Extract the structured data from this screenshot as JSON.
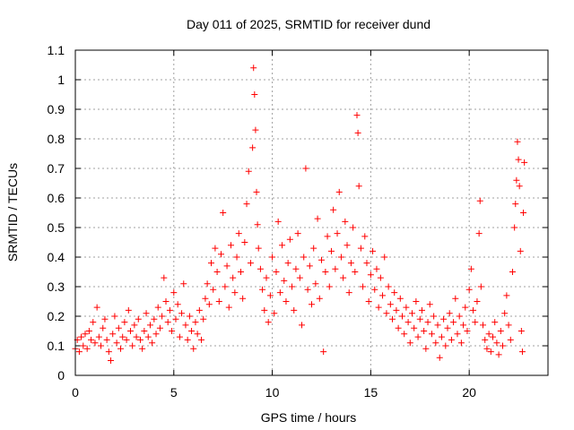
{
  "chart_data": {
    "type": "scatter",
    "title": "Day 011 of 2025, SRMTID for receiver dund",
    "xlabel": "GPS time / hours",
    "ylabel": "SRMTID / TECUs",
    "xlim": [
      0,
      24
    ],
    "ylim": [
      0,
      1.1
    ],
    "x_ticks": [
      0,
      5,
      10,
      15,
      20
    ],
    "x_tick_labels": [
      "0",
      "5",
      "10",
      "15",
      "20"
    ],
    "y_ticks": [
      0,
      0.1,
      0.2,
      0.3,
      0.4,
      0.5,
      0.6,
      0.7,
      0.8,
      0.9,
      1.0,
      1.1
    ],
    "y_tick_labels": [
      "0",
      "0.1",
      "0.2",
      "0.3",
      "0.4",
      "0.5",
      "0.6",
      "0.7",
      "0.8",
      "0.9",
      "1",
      "1.1"
    ],
    "grid": true,
    "marker": "+",
    "series": [
      {
        "name": "SRMTID",
        "color": "#ff0000",
        "points": [
          [
            0.0,
            0.09
          ],
          [
            0.1,
            0.12
          ],
          [
            0.2,
            0.08
          ],
          [
            0.3,
            0.13
          ],
          [
            0.4,
            0.1
          ],
          [
            0.5,
            0.14
          ],
          [
            0.6,
            0.09
          ],
          [
            0.7,
            0.15
          ],
          [
            0.8,
            0.12
          ],
          [
            0.9,
            0.18
          ],
          [
            1.0,
            0.11
          ],
          [
            1.1,
            0.23
          ],
          [
            1.2,
            0.13
          ],
          [
            1.3,
            0.1
          ],
          [
            1.4,
            0.16
          ],
          [
            1.5,
            0.19
          ],
          [
            1.6,
            0.12
          ],
          [
            1.7,
            0.08
          ],
          [
            1.8,
            0.05
          ],
          [
            1.9,
            0.14
          ],
          [
            2.0,
            0.2
          ],
          [
            2.1,
            0.11
          ],
          [
            2.2,
            0.16
          ],
          [
            2.3,
            0.09
          ],
          [
            2.4,
            0.13
          ],
          [
            2.5,
            0.18
          ],
          [
            2.6,
            0.12
          ],
          [
            2.7,
            0.22
          ],
          [
            2.8,
            0.15
          ],
          [
            2.9,
            0.1
          ],
          [
            3.0,
            0.17
          ],
          [
            3.1,
            0.13
          ],
          [
            3.2,
            0.19
          ],
          [
            3.3,
            0.12
          ],
          [
            3.4,
            0.09
          ],
          [
            3.5,
            0.15
          ],
          [
            3.6,
            0.21
          ],
          [
            3.7,
            0.13
          ],
          [
            3.8,
            0.17
          ],
          [
            3.9,
            0.11
          ],
          [
            4.0,
            0.19
          ],
          [
            4.1,
            0.14
          ],
          [
            4.2,
            0.23
          ],
          [
            4.3,
            0.16
          ],
          [
            4.4,
            0.2
          ],
          [
            4.5,
            0.33
          ],
          [
            4.6,
            0.25
          ],
          [
            4.7,
            0.18
          ],
          [
            4.8,
            0.22
          ],
          [
            4.9,
            0.15
          ],
          [
            5.0,
            0.28
          ],
          [
            5.1,
            0.19
          ],
          [
            5.2,
            0.24
          ],
          [
            5.3,
            0.13
          ],
          [
            5.4,
            0.21
          ],
          [
            5.5,
            0.31
          ],
          [
            5.6,
            0.17
          ],
          [
            5.7,
            0.12
          ],
          [
            5.8,
            0.2
          ],
          [
            5.9,
            0.15
          ],
          [
            6.0,
            0.09
          ],
          [
            6.1,
            0.18
          ],
          [
            6.2,
            0.14
          ],
          [
            6.3,
            0.22
          ],
          [
            6.4,
            0.12
          ],
          [
            6.5,
            0.19
          ],
          [
            6.6,
            0.26
          ],
          [
            6.7,
            0.31
          ],
          [
            6.8,
            0.24
          ],
          [
            6.9,
            0.38
          ],
          [
            7.0,
            0.29
          ],
          [
            7.1,
            0.43
          ],
          [
            7.2,
            0.35
          ],
          [
            7.3,
            0.25
          ],
          [
            7.4,
            0.41
          ],
          [
            7.5,
            0.55
          ],
          [
            7.6,
            0.3
          ],
          [
            7.7,
            0.37
          ],
          [
            7.8,
            0.23
          ],
          [
            7.9,
            0.44
          ],
          [
            8.0,
            0.33
          ],
          [
            8.1,
            0.28
          ],
          [
            8.2,
            0.4
          ],
          [
            8.3,
            0.48
          ],
          [
            8.4,
            0.35
          ],
          [
            8.5,
            0.26
          ],
          [
            8.6,
            0.45
          ],
          [
            8.7,
            0.58
          ],
          [
            8.8,
            0.69
          ],
          [
            8.9,
            0.38
          ],
          [
            9.0,
            0.77
          ],
          [
            9.05,
            1.04
          ],
          [
            9.1,
            0.95
          ],
          [
            9.15,
            0.83
          ],
          [
            9.2,
            0.62
          ],
          [
            9.25,
            0.51
          ],
          [
            9.3,
            0.43
          ],
          [
            9.4,
            0.36
          ],
          [
            9.5,
            0.29
          ],
          [
            9.6,
            0.22
          ],
          [
            9.7,
            0.33
          ],
          [
            9.8,
            0.18
          ],
          [
            9.9,
            0.27
          ],
          [
            10.0,
            0.4
          ],
          [
            10.1,
            0.21
          ],
          [
            10.2,
            0.35
          ],
          [
            10.3,
            0.52
          ],
          [
            10.4,
            0.28
          ],
          [
            10.5,
            0.44
          ],
          [
            10.6,
            0.32
          ],
          [
            10.7,
            0.25
          ],
          [
            10.8,
            0.38
          ],
          [
            10.9,
            0.46
          ],
          [
            11.0,
            0.3
          ],
          [
            11.1,
            0.22
          ],
          [
            11.2,
            0.36
          ],
          [
            11.3,
            0.48
          ],
          [
            11.4,
            0.33
          ],
          [
            11.5,
            0.17
          ],
          [
            11.6,
            0.4
          ],
          [
            11.7,
            0.7
          ],
          [
            11.8,
            0.29
          ],
          [
            11.9,
            0.37
          ],
          [
            12.0,
            0.24
          ],
          [
            12.1,
            0.43
          ],
          [
            12.2,
            0.31
          ],
          [
            12.3,
            0.53
          ],
          [
            12.4,
            0.26
          ],
          [
            12.5,
            0.39
          ],
          [
            12.6,
            0.08
          ],
          [
            12.7,
            0.35
          ],
          [
            12.8,
            0.47
          ],
          [
            12.9,
            0.3
          ],
          [
            13.0,
            0.42
          ],
          [
            13.1,
            0.56
          ],
          [
            13.2,
            0.36
          ],
          [
            13.3,
            0.48
          ],
          [
            13.4,
            0.62
          ],
          [
            13.5,
            0.4
          ],
          [
            13.6,
            0.33
          ],
          [
            13.7,
            0.52
          ],
          [
            13.8,
            0.44
          ],
          [
            13.9,
            0.28
          ],
          [
            14.0,
            0.38
          ],
          [
            14.1,
            0.5
          ],
          [
            14.2,
            0.35
          ],
          [
            14.3,
            0.88
          ],
          [
            14.35,
            0.82
          ],
          [
            14.4,
            0.64
          ],
          [
            14.5,
            0.43
          ],
          [
            14.6,
            0.3
          ],
          [
            14.7,
            0.47
          ],
          [
            14.8,
            0.38
          ],
          [
            14.9,
            0.25
          ],
          [
            15.0,
            0.34
          ],
          [
            15.1,
            0.42
          ],
          [
            15.2,
            0.29
          ],
          [
            15.3,
            0.36
          ],
          [
            15.4,
            0.23
          ],
          [
            15.5,
            0.33
          ],
          [
            15.6,
            0.27
          ],
          [
            15.7,
            0.4
          ],
          [
            15.8,
            0.21
          ],
          [
            15.9,
            0.3
          ],
          [
            16.0,
            0.24
          ],
          [
            16.1,
            0.19
          ],
          [
            16.2,
            0.28
          ],
          [
            16.3,
            0.22
          ],
          [
            16.4,
            0.16
          ],
          [
            16.5,
            0.26
          ],
          [
            16.6,
            0.2
          ],
          [
            16.7,
            0.14
          ],
          [
            16.8,
            0.23
          ],
          [
            16.9,
            0.18
          ],
          [
            17.0,
            0.11
          ],
          [
            17.1,
            0.21
          ],
          [
            17.2,
            0.16
          ],
          [
            17.3,
            0.25
          ],
          [
            17.4,
            0.13
          ],
          [
            17.5,
            0.19
          ],
          [
            17.6,
            0.22
          ],
          [
            17.7,
            0.15
          ],
          [
            17.8,
            0.09
          ],
          [
            17.9,
            0.18
          ],
          [
            18.0,
            0.24
          ],
          [
            18.1,
            0.14
          ],
          [
            18.2,
            0.2
          ],
          [
            18.3,
            0.11
          ],
          [
            18.4,
            0.17
          ],
          [
            18.5,
            0.06
          ],
          [
            18.6,
            0.13
          ],
          [
            18.7,
            0.19
          ],
          [
            18.8,
            0.1
          ],
          [
            18.9,
            0.16
          ],
          [
            19.0,
            0.21
          ],
          [
            19.1,
            0.12
          ],
          [
            19.2,
            0.18
          ],
          [
            19.3,
            0.26
          ],
          [
            19.4,
            0.14
          ],
          [
            19.5,
            0.2
          ],
          [
            19.6,
            0.11
          ],
          [
            19.7,
            0.17
          ],
          [
            19.8,
            0.23
          ],
          [
            19.9,
            0.15
          ],
          [
            20.0,
            0.29
          ],
          [
            20.1,
            0.36
          ],
          [
            20.2,
            0.22
          ],
          [
            20.3,
            0.18
          ],
          [
            20.4,
            0.25
          ],
          [
            20.5,
            0.48
          ],
          [
            20.55,
            0.59
          ],
          [
            20.6,
            0.3
          ],
          [
            20.7,
            0.17
          ],
          [
            20.8,
            0.12
          ],
          [
            20.9,
            0.09
          ],
          [
            21.0,
            0.14
          ],
          [
            21.1,
            0.08
          ],
          [
            21.2,
            0.13
          ],
          [
            21.3,
            0.18
          ],
          [
            21.4,
            0.11
          ],
          [
            21.5,
            0.07
          ],
          [
            21.6,
            0.15
          ],
          [
            21.7,
            0.1
          ],
          [
            21.8,
            0.21
          ],
          [
            21.9,
            0.27
          ],
          [
            22.0,
            0.17
          ],
          [
            22.1,
            0.12
          ],
          [
            22.2,
            0.35
          ],
          [
            22.3,
            0.5
          ],
          [
            22.35,
            0.58
          ],
          [
            22.4,
            0.66
          ],
          [
            22.45,
            0.79
          ],
          [
            22.5,
            0.73
          ],
          [
            22.55,
            0.64
          ],
          [
            22.6,
            0.42
          ],
          [
            22.65,
            0.15
          ],
          [
            22.7,
            0.08
          ],
          [
            22.75,
            0.55
          ],
          [
            22.8,
            0.72
          ]
        ]
      }
    ]
  }
}
